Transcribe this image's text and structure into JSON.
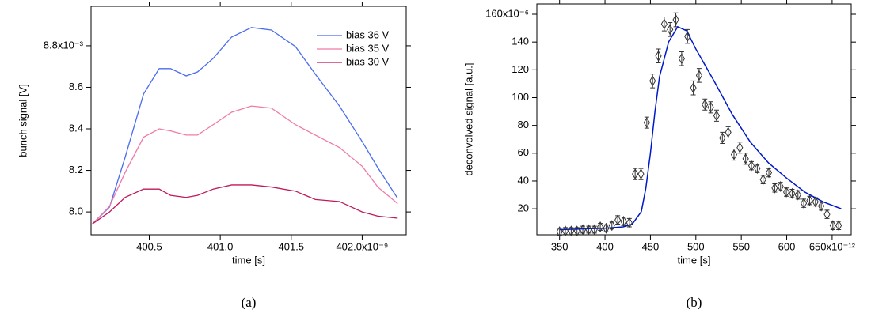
{
  "chart_data": [
    {
      "type": "line",
      "caption": "(a)",
      "xlabel": "time [s]",
      "ylabel": "bunch signal [V]",
      "x": [
        400.1,
        400.22,
        400.33,
        400.46,
        400.57,
        400.65,
        400.76,
        400.84,
        400.95,
        401.08,
        401.22,
        401.36,
        401.53,
        401.67,
        401.84,
        402.0,
        402.11,
        402.25
      ],
      "series": [
        {
          "name": "bias 36 V",
          "color": "#4a6cf0",
          "values": [
            7.943,
            8.023,
            8.263,
            8.568,
            8.69,
            8.69,
            8.655,
            8.674,
            8.739,
            8.842,
            8.888,
            8.876,
            8.796,
            8.663,
            8.51,
            8.339,
            8.213,
            8.065
          ]
        },
        {
          "name": "bias 35 V",
          "color": "#f07aa8",
          "values": [
            7.943,
            8.027,
            8.19,
            8.36,
            8.4,
            8.39,
            8.37,
            8.37,
            8.42,
            8.48,
            8.51,
            8.5,
            8.42,
            8.37,
            8.31,
            8.22,
            8.12,
            8.04
          ]
        },
        {
          "name": "bias 30 V",
          "color": "#c0185a",
          "values": [
            7.943,
            8.0,
            8.07,
            8.11,
            8.11,
            8.08,
            8.07,
            8.08,
            8.11,
            8.13,
            8.13,
            8.12,
            8.1,
            8.06,
            8.05,
            8.0,
            7.98,
            7.97
          ]
        }
      ],
      "xlim": [
        400.09,
        402.31
      ],
      "ylim": [
        7.89,
        8.99
      ],
      "xticks": [
        400.5,
        {
          "value": 401.0,
          "label": "401.0"
        },
        401.5,
        {
          "value": 402.0,
          "label": "402.0x10⁻⁹"
        }
      ],
      "yticks": [
        {
          "value": 8.0,
          "label": "8.0"
        },
        8.2,
        8.4,
        8.6,
        {
          "value": 8.8,
          "label": "8.8x10⁻³"
        }
      ],
      "legend": "upper right"
    },
    {
      "type": "scatter",
      "caption": "(b)",
      "xlabel": "time [s]",
      "ylabel": "deconvolved signal [a.u.]",
      "x": [
        350,
        356.4,
        362.8,
        369.2,
        375.6,
        382,
        388.4,
        394.8,
        401.2,
        407.6,
        414,
        420.4,
        426.8,
        433.2,
        439.6,
        446,
        452.4,
        458.8,
        465.2,
        471.6,
        478,
        484.4,
        490.8,
        497.2,
        503.6,
        510,
        516.4,
        522.8,
        529.2,
        535.6,
        542,
        548.4,
        554.8,
        561.2,
        567.6,
        574,
        580.4,
        586.8,
        593.2,
        599.6,
        606,
        612.4,
        618.8,
        625.2,
        631.6,
        638,
        644.4,
        650.8,
        657.2
      ],
      "values": [
        3.5,
        4,
        4,
        4,
        5,
        5,
        5,
        7,
        6,
        8,
        12,
        11,
        10,
        45,
        45,
        82,
        112,
        130,
        153,
        149,
        156,
        128,
        144,
        107,
        116,
        95,
        93,
        87,
        71,
        75,
        59,
        64,
        56,
        51,
        49,
        41,
        46,
        35,
        36,
        32,
        31,
        30,
        24,
        26,
        25,
        22,
        16,
        8,
        8
      ],
      "errors": [
        2.5,
        2.5,
        2.5,
        2.5,
        2.5,
        2.5,
        2.5,
        2.5,
        2.5,
        2.5,
        3,
        3,
        3,
        4,
        4,
        4,
        5,
        5,
        5,
        5,
        5,
        5,
        5,
        5,
        5,
        4,
        4,
        4,
        4,
        4,
        4,
        4,
        4,
        3,
        3,
        3,
        3,
        3,
        3,
        3,
        3,
        3,
        3,
        3,
        3,
        3,
        3,
        3,
        3
      ],
      "marker_color": "#333333",
      "fit": {
        "color": "#0019c8",
        "x": [
          350,
          400,
          420,
          430,
          440,
          445,
          450,
          455,
          460,
          470,
          480,
          490,
          500,
          520,
          540,
          560,
          580,
          600,
          620,
          640,
          660
        ],
        "values": [
          5,
          6,
          7,
          9,
          18,
          35,
          60,
          90,
          115,
          140,
          151,
          148,
          135,
          112,
          88,
          68,
          53,
          42,
          32,
          25,
          20
        ]
      },
      "xlim": [
        325,
        671
      ],
      "ylim": [
        1.3,
        167.4
      ],
      "xticks": [
        350,
        400,
        450,
        500,
        550,
        600,
        {
          "value": 650,
          "label": "650x10⁻¹²"
        }
      ],
      "yticks": [
        20,
        40,
        60,
        80,
        100,
        120,
        {
          "value": 140,
          "label": "140"
        },
        {
          "value": 160,
          "label": "160x10⁻⁶"
        }
      ]
    }
  ]
}
